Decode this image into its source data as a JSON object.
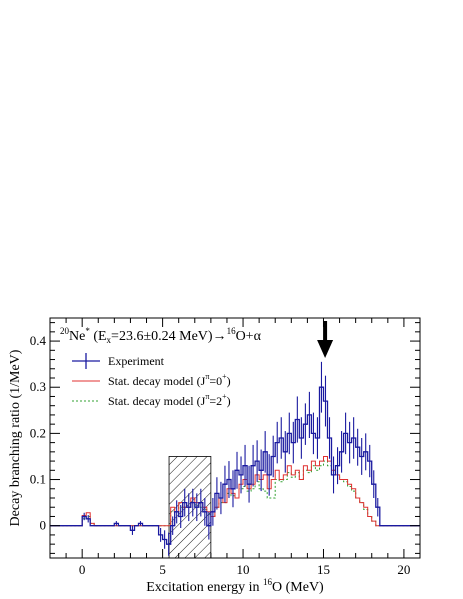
{
  "chart_data": {
    "type": "histogram-step",
    "title_parts": {
      "main": "Ne",
      "mass": "20",
      "star": "*",
      "open": " (E",
      "sub": "x",
      "energy": "=23.6±0.24 MeV)→",
      "mass2": "16",
      "product": "O+α"
    },
    "xlabel_main": "Excitation energy in ",
    "xlabel_mass": "16",
    "xlabel_tail": "O (MeV)",
    "ylabel": "Decay branching ratio (1/MeV)",
    "xlim": [
      -2,
      21
    ],
    "ylim": [
      -0.07,
      0.45
    ],
    "x_ticks": [
      0,
      5,
      10,
      15,
      20
    ],
    "y_ticks": [
      0,
      0.1,
      0.2,
      0.3,
      0.4
    ],
    "x_tick_labels": [
      "0",
      "5",
      "10",
      "15",
      "20"
    ],
    "y_tick_labels": [
      "0",
      "0.1",
      "0.2",
      "0.3",
      "0.4"
    ],
    "legend": {
      "placement": "top-left",
      "entries": [
        {
          "label_main": "Experiment",
          "label_sup": ""
        },
        {
          "label_main": "Stat. decay model (J",
          "label_pi": "π",
          "label_eq": "=0",
          "label_sup": "+",
          "label_end": ")"
        },
        {
          "label_main": "Stat. decay model (J",
          "label_pi": "π",
          "label_eq": "=2",
          "label_sup": "+",
          "label_end": ")"
        }
      ]
    },
    "arrow_at_x": 15.1,
    "hatched_region": {
      "x": [
        5.4,
        8.0
      ],
      "y_top": 0.15
    },
    "series": [
      {
        "name": "Experiment",
        "color": "#1a1aa0",
        "bin_width": 0.25,
        "x": [
          -2.0,
          0.0,
          0.25,
          0.5,
          0.75,
          1.0,
          1.25,
          1.5,
          1.75,
          2.0,
          2.25,
          2.5,
          2.75,
          3.0,
          3.25,
          3.5,
          3.75,
          4.0,
          4.25,
          4.5,
          4.75,
          5.0,
          5.25,
          5.5,
          5.75,
          6.0,
          6.25,
          6.5,
          6.75,
          7.0,
          7.25,
          7.5,
          7.75,
          8.0,
          8.25,
          8.5,
          8.75,
          9.0,
          9.25,
          9.5,
          9.75,
          10.0,
          10.25,
          10.5,
          10.75,
          11.0,
          11.25,
          11.5,
          11.75,
          12.0,
          12.25,
          12.5,
          12.75,
          13.0,
          13.25,
          13.5,
          13.75,
          14.0,
          14.25,
          14.5,
          14.75,
          15.0,
          15.25,
          15.5,
          15.75,
          16.0,
          16.25,
          16.5,
          16.75,
          17.0,
          17.25,
          17.5,
          17.75,
          18.0,
          18.25,
          18.5
        ],
        "values": [
          0.0,
          0.02,
          0.015,
          0.0,
          0.0,
          0.0,
          0.0,
          0.0,
          0.0,
          0.005,
          0.0,
          0.0,
          0.0,
          -0.01,
          0.0,
          0.005,
          0.0,
          0.0,
          0.0,
          0.0,
          -0.02,
          -0.03,
          -0.04,
          0.0,
          0.03,
          0.02,
          0.05,
          0.04,
          0.05,
          0.04,
          0.05,
          0.03,
          0.0,
          0.03,
          0.07,
          0.06,
          0.09,
          0.1,
          0.08,
          0.12,
          0.11,
          0.13,
          0.09,
          0.13,
          0.14,
          0.12,
          0.16,
          0.11,
          0.15,
          0.18,
          0.19,
          0.16,
          0.2,
          0.18,
          0.23,
          0.19,
          0.22,
          0.24,
          0.2,
          0.19,
          0.3,
          0.27,
          0.19,
          0.11,
          0.13,
          0.16,
          0.2,
          0.18,
          0.19,
          0.17,
          0.15,
          0.16,
          0.14,
          0.09,
          0.04,
          0.0
        ],
        "errors": [
          0.0,
          0.008,
          0.008,
          0.0,
          0.0,
          0.0,
          0.0,
          0.0,
          0.0,
          0.005,
          0.0,
          0.0,
          0.0,
          0.01,
          0.0,
          0.005,
          0.0,
          0.0,
          0.0,
          0.0,
          0.015,
          0.02,
          0.025,
          0.02,
          0.025,
          0.025,
          0.03,
          0.03,
          0.03,
          0.03,
          0.03,
          0.03,
          0.03,
          0.03,
          0.035,
          0.035,
          0.04,
          0.04,
          0.04,
          0.04,
          0.04,
          0.045,
          0.04,
          0.045,
          0.045,
          0.045,
          0.045,
          0.045,
          0.045,
          0.045,
          0.045,
          0.045,
          0.045,
          0.045,
          0.05,
          0.045,
          0.045,
          0.05,
          0.045,
          0.045,
          0.055,
          0.055,
          0.045,
          0.04,
          0.04,
          0.045,
          0.045,
          0.045,
          0.045,
          0.04,
          0.04,
          0.04,
          0.035,
          0.03,
          0.02,
          0.0
        ]
      },
      {
        "name": "Stat. decay model (Jπ=0+)",
        "color": "#e03030",
        "bin_width": 0.25,
        "x": [
          -2.0,
          0.0,
          0.25,
          0.5,
          0.75,
          3.0,
          3.25,
          5.5,
          5.75,
          6.0,
          6.25,
          6.5,
          6.75,
          7.0,
          7.25,
          7.5,
          7.75,
          8.0,
          8.25,
          8.5,
          8.75,
          9.0,
          9.25,
          9.5,
          9.75,
          10.0,
          10.25,
          10.5,
          10.75,
          11.0,
          11.25,
          11.5,
          11.75,
          12.0,
          12.25,
          12.5,
          12.75,
          13.0,
          13.25,
          13.5,
          13.75,
          14.0,
          14.25,
          14.5,
          14.75,
          15.0,
          15.25,
          15.5,
          15.75,
          16.0,
          16.25,
          16.5,
          16.75,
          17.0,
          17.25,
          17.5,
          17.75,
          18.0,
          18.25,
          18.5
        ],
        "values": [
          0.0,
          0.022,
          0.028,
          0.005,
          0.0,
          0.0,
          0.0,
          0.04,
          0.03,
          0.05,
          0.04,
          0.04,
          0.06,
          0.05,
          0.05,
          0.04,
          0.03,
          0.02,
          0.04,
          0.06,
          0.05,
          0.08,
          0.07,
          0.06,
          0.09,
          0.1,
          0.08,
          0.09,
          0.11,
          0.1,
          0.11,
          0.08,
          0.1,
          0.12,
          0.1,
          0.11,
          0.13,
          0.11,
          0.12,
          0.1,
          0.13,
          0.12,
          0.14,
          0.13,
          0.14,
          0.15,
          0.14,
          0.12,
          0.11,
          0.1,
          0.1,
          0.09,
          0.08,
          0.06,
          0.05,
          0.04,
          0.02,
          0.01,
          0.0,
          0.0
        ]
      },
      {
        "name": "Stat. decay model (Jπ=2+)",
        "color": "#30a030",
        "bin_width": 0.25,
        "x": [
          -2.0,
          0.0,
          0.25,
          0.5,
          0.75,
          5.5,
          5.75,
          6.0,
          6.25,
          6.5,
          6.75,
          7.0,
          7.25,
          7.5,
          7.75,
          8.0,
          8.25,
          8.5,
          8.75,
          9.0,
          9.25,
          9.5,
          9.75,
          10.0,
          10.25,
          10.5,
          10.75,
          11.0,
          11.25,
          11.5,
          11.75,
          12.0,
          12.25,
          12.5,
          12.75,
          13.0,
          13.25,
          13.5,
          13.75,
          14.0,
          14.25,
          14.5,
          14.75,
          15.0,
          15.25,
          15.5,
          15.75,
          16.0,
          16.25,
          16.5,
          16.75,
          17.0,
          17.25,
          17.5,
          17.75,
          18.0,
          18.25,
          18.5
        ],
        "values": [
          0.0,
          0.015,
          0.02,
          0.005,
          0.0,
          0.03,
          0.03,
          0.04,
          0.04,
          0.04,
          0.05,
          0.045,
          0.04,
          0.035,
          0.025,
          0.02,
          0.04,
          0.05,
          0.05,
          0.07,
          0.065,
          0.06,
          0.08,
          0.085,
          0.075,
          0.08,
          0.095,
          0.08,
          0.075,
          0.06,
          0.06,
          0.1,
          0.095,
          0.1,
          0.115,
          0.105,
          0.115,
          0.1,
          0.12,
          0.115,
          0.13,
          0.12,
          0.13,
          0.14,
          0.13,
          0.12,
          0.11,
          0.1,
          0.095,
          0.085,
          0.075,
          0.06,
          0.05,
          0.035,
          0.02,
          0.01,
          0.0,
          0.0
        ]
      }
    ]
  }
}
